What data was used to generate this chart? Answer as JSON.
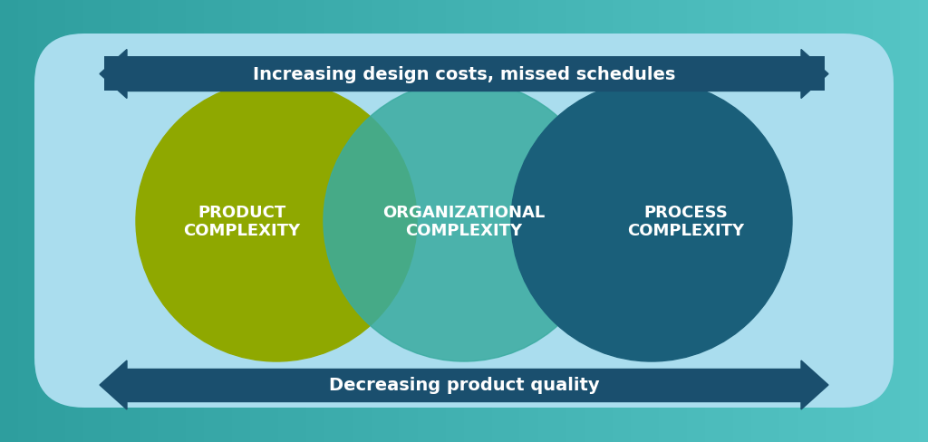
{
  "bg_outer_color": "#4db8b8",
  "bg_inner_color": "#aaddee",
  "rounded_box_color": "#aaddee",
  "rounded_box_edge_color": "#aaddee",
  "circle1_color": "#8fa800",
  "circle2_color": "#3aaba0",
  "circle3_color": "#1a5f7a",
  "arrow_bar_color": "#1a4f6e",
  "arrow_text_color": "#ffffff",
  "label1": "PRODUCT\nCOMPLEXITY",
  "label2": "ORGANIZATIONAL\nCOMPLEXITY",
  "label3": "PROCESS\nCOMPLEXITY",
  "top_arrow_text": "Increasing design costs, missed schedules",
  "bottom_arrow_text": "Decreasing product quality",
  "label_fontsize": 13,
  "arrow_fontsize": 14
}
